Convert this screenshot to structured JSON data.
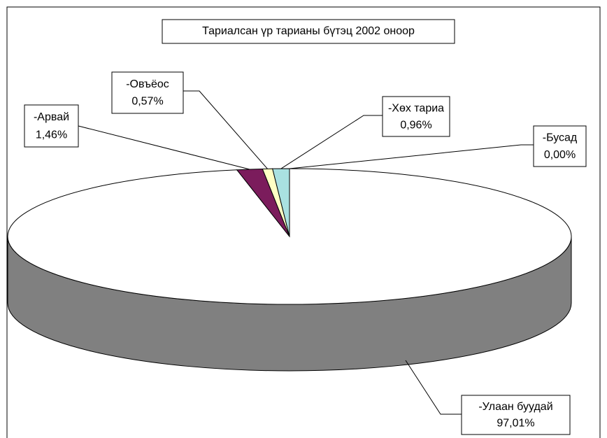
{
  "chart_data": {
    "type": "pie3d",
    "title": "Тариалсан үр тарианы бүтэц 2002 оноор",
    "categories": [
      "-Улаан буудай",
      "-Арвай",
      "-Овъёос",
      "-Хөх тариа",
      "-Бусад"
    ],
    "values": [
      97.01,
      1.46,
      0.57,
      0.96,
      0.0
    ],
    "value_labels": [
      "97,01%",
      "1,46%",
      "0,57%",
      "0,96%",
      "0,00%"
    ],
    "colors": [
      "#ffffff",
      "#7b1c5c",
      "#ffffc4",
      "#a9e1e1",
      "#c0c0ff"
    ]
  }
}
